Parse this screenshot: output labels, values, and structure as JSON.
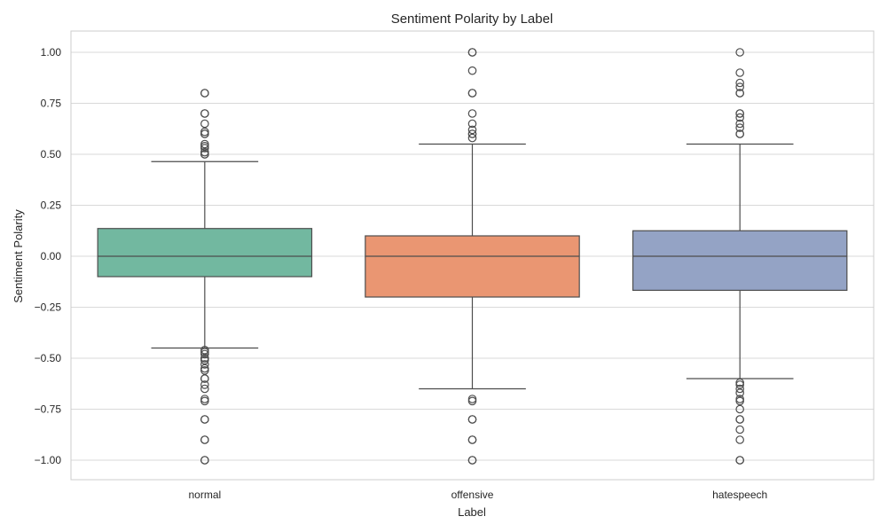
{
  "chart_data": {
    "type": "box",
    "title": "Sentiment Polarity by Label",
    "xlabel": "Label",
    "ylabel": "Sentiment Polarity",
    "ylim": [
      -1.1,
      1.1
    ],
    "yticks": [
      1.0,
      0.75,
      0.5,
      0.25,
      0.0,
      -0.25,
      -0.5,
      -0.75,
      -1.0
    ],
    "ytick_labels": [
      "1.00",
      "0.75",
      "0.50",
      "0.25",
      "0.00",
      "−0.25",
      "−0.50",
      "−0.75",
      "−1.00"
    ],
    "grid": "horizontal",
    "categories": [
      "normal",
      "offensive",
      "hatespeech"
    ],
    "colors": [
      "#72b8a0",
      "#ea9672",
      "#94a3c5"
    ],
    "edge_color": "#4d4d4d",
    "boxes": [
      {
        "label": "normal",
        "whisker_low": -0.45,
        "q1": -0.1,
        "median": 0.0,
        "q3": 0.136,
        "whisker_high": 0.464,
        "outliers": [
          0.8,
          0.8,
          0.7,
          0.7,
          0.65,
          0.61,
          0.6,
          0.6,
          0.55,
          0.54,
          0.53,
          0.51,
          0.5,
          0.5,
          -0.46,
          -0.47,
          -0.48,
          -0.5,
          -0.5,
          -0.51,
          -0.53,
          -0.55,
          -0.56,
          -0.6,
          -0.6,
          -0.63,
          -0.65,
          -0.7,
          -0.71,
          -0.8,
          -0.8,
          -0.9,
          -0.9,
          -1.0,
          -1.0
        ]
      },
      {
        "label": "offensive",
        "whisker_low": -0.65,
        "q1": -0.2,
        "median": 0.0,
        "q3": 0.1,
        "whisker_high": 0.55,
        "outliers": [
          1.0,
          1.0,
          0.91,
          0.8,
          0.8,
          0.7,
          0.65,
          0.62,
          0.6,
          0.6,
          0.58,
          -0.7,
          -0.71,
          -0.8,
          -0.8,
          -0.9,
          -0.9,
          -1.0,
          -1.0
        ]
      },
      {
        "label": "hatespeech",
        "whisker_low": -0.6,
        "q1": -0.167,
        "median": 0.0,
        "q3": 0.125,
        "whisker_high": 0.55,
        "outliers": [
          1.0,
          0.9,
          0.85,
          0.83,
          0.8,
          0.8,
          0.7,
          0.7,
          0.68,
          0.65,
          0.63,
          0.6,
          0.6,
          -0.62,
          -0.63,
          -0.65,
          -0.67,
          -0.7,
          -0.71,
          -0.75,
          -0.8,
          -0.8,
          -0.85,
          -0.9,
          -1.0,
          -1.0
        ]
      }
    ]
  }
}
